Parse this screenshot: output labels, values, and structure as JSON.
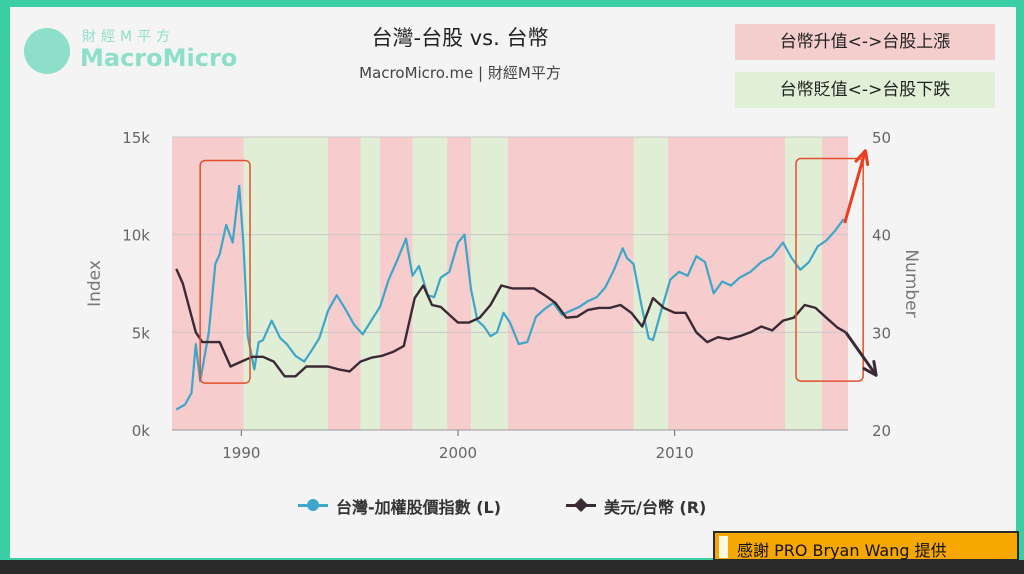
{
  "logo": {
    "cn": "財經M平方",
    "en": "MacroMicro"
  },
  "title": "台灣-台股 vs. 台幣",
  "subtitle": "MacroMicro.me | 財經M平方",
  "legend_boxes": {
    "up": "台幣升值<->台股上漲",
    "down": "台幣貶值<->台股下跌"
  },
  "colors": {
    "taiex": "#3ea6c8",
    "usdtwd": "#3a2a35",
    "shade_red": "#f6cccd",
    "shade_green": "#e1eed6",
    "arrow_red": "#ee3d1e",
    "arrow_dark": "#3a2a35",
    "highlight_box": "#e2502a"
  },
  "credit": {
    "text": "感謝 PRO Bryan Wang 提供"
  },
  "chart_data": {
    "type": "line",
    "xlim": [
      1986.8,
      2018.0
    ],
    "x_ticks": [
      "1990",
      "2000",
      "2010"
    ],
    "left_axis": {
      "label": "Index",
      "ylim": [
        0,
        15000
      ],
      "ticks": [
        "0k",
        "5k",
        "10k",
        "15k"
      ]
    },
    "right_axis": {
      "label": "Number",
      "ylim": [
        20,
        50
      ],
      "ticks": [
        "20",
        "30",
        "40",
        "50"
      ]
    },
    "regions": [
      {
        "from": 1986.8,
        "to": 1990.1,
        "kind": "up"
      },
      {
        "from": 1990.1,
        "to": 1994.0,
        "kind": "down"
      },
      {
        "from": 1994.0,
        "to": 1995.5,
        "kind": "up"
      },
      {
        "from": 1995.5,
        "to": 1996.4,
        "kind": "down"
      },
      {
        "from": 1996.4,
        "to": 1997.9,
        "kind": "up"
      },
      {
        "from": 1997.9,
        "to": 1999.5,
        "kind": "down"
      },
      {
        "from": 1999.5,
        "to": 2000.6,
        "kind": "up"
      },
      {
        "from": 2000.6,
        "to": 2002.3,
        "kind": "down"
      },
      {
        "from": 2002.3,
        "to": 2008.1,
        "kind": "up"
      },
      {
        "from": 2008.1,
        "to": 2009.7,
        "kind": "down"
      },
      {
        "from": 2009.7,
        "to": 2015.1,
        "kind": "up"
      },
      {
        "from": 2015.1,
        "to": 2016.8,
        "kind": "down"
      },
      {
        "from": 2016.8,
        "to": 2018.0,
        "kind": "up"
      }
    ],
    "series": [
      {
        "name": "台灣-加權股價指數 (L)",
        "axis": "left",
        "x": [
          1987.0,
          1987.4,
          1987.7,
          1987.9,
          1988.1,
          1988.5,
          1988.8,
          1989.0,
          1989.3,
          1989.6,
          1989.9,
          1990.1,
          1990.3,
          1990.6,
          1990.8,
          1991.0,
          1991.4,
          1991.8,
          1992.1,
          1992.5,
          1992.9,
          1993.2,
          1993.6,
          1994.0,
          1994.4,
          1994.8,
          1995.2,
          1995.6,
          1996.0,
          1996.4,
          1996.8,
          1997.2,
          1997.6,
          1997.9,
          1998.2,
          1998.6,
          1998.9,
          1999.2,
          1999.6,
          2000.0,
          2000.3,
          2000.6,
          2000.9,
          2001.2,
          2001.5,
          2001.8,
          2002.1,
          2002.4,
          2002.8,
          2003.2,
          2003.6,
          2004.0,
          2004.4,
          2004.8,
          2005.2,
          2005.6,
          2006.0,
          2006.4,
          2006.8,
          2007.2,
          2007.6,
          2007.8,
          2008.1,
          2008.5,
          2008.8,
          2009.0,
          2009.4,
          2009.8,
          2010.2,
          2010.6,
          2011.0,
          2011.4,
          2011.8,
          2012.2,
          2012.6,
          2013.0,
          2013.5,
          2014.0,
          2014.5,
          2015.0,
          2015.4,
          2015.8,
          2016.2,
          2016.6,
          2017.0,
          2017.4,
          2017.8
        ],
        "values": [
          1050,
          1300,
          1900,
          4400,
          2500,
          5000,
          8500,
          9000,
          10500,
          9600,
          12500,
          9500,
          4800,
          3100,
          4500,
          4600,
          5600,
          4700,
          4400,
          3800,
          3500,
          4000,
          4700,
          6100,
          6900,
          6200,
          5400,
          4900,
          5600,
          6300,
          7700,
          8700,
          9800,
          7900,
          8400,
          6900,
          6800,
          7800,
          8100,
          9600,
          10000,
          7200,
          5600,
          5300,
          4800,
          5000,
          6000,
          5500,
          4400,
          4500,
          5800,
          6200,
          6500,
          5900,
          6100,
          6300,
          6600,
          6800,
          7300,
          8200,
          9300,
          8800,
          8500,
          6200,
          4700,
          4600,
          6200,
          7700,
          8100,
          7900,
          8900,
          8600,
          7000,
          7600,
          7400,
          7800,
          8100,
          8600,
          8900,
          9600,
          8800,
          8200,
          8600,
          9400,
          9700,
          10200,
          10800
        ]
      },
      {
        "name": "美元/台幣 (R)",
        "axis": "right",
        "x": [
          1987.0,
          1987.3,
          1987.6,
          1987.9,
          1988.2,
          1988.6,
          1989.0,
          1989.5,
          1990.0,
          1990.5,
          1991.0,
          1991.5,
          1992.0,
          1992.5,
          1993.0,
          1993.5,
          1994.0,
          1994.5,
          1995.0,
          1995.5,
          1996.0,
          1996.5,
          1997.0,
          1997.5,
          1998.0,
          1998.4,
          1998.8,
          1999.2,
          1999.6,
          2000.0,
          2000.5,
          2001.0,
          2001.5,
          2002.0,
          2002.5,
          2003.0,
          2003.5,
          2004.0,
          2004.5,
          2005.0,
          2005.5,
          2006.0,
          2006.5,
          2007.0,
          2007.5,
          2008.0,
          2008.5,
          2009.0,
          2009.5,
          2010.0,
          2010.5,
          2011.0,
          2011.5,
          2012.0,
          2012.5,
          2013.0,
          2013.5,
          2014.0,
          2014.5,
          2015.0,
          2015.5,
          2016.0,
          2016.5,
          2017.0,
          2017.5,
          2017.9
        ],
        "values": [
          36.5,
          35.0,
          32.5,
          30.0,
          29.0,
          29.0,
          29.0,
          26.5,
          27.0,
          27.5,
          27.5,
          27.0,
          25.5,
          25.5,
          26.5,
          26.5,
          26.5,
          26.2,
          26.0,
          27.0,
          27.4,
          27.6,
          28.0,
          28.6,
          33.5,
          34.8,
          32.8,
          32.6,
          31.8,
          31.0,
          31.0,
          31.5,
          32.8,
          34.8,
          34.5,
          34.5,
          34.5,
          33.8,
          33.0,
          31.5,
          31.6,
          32.3,
          32.5,
          32.5,
          32.8,
          32.0,
          30.6,
          33.5,
          32.5,
          32.0,
          32.0,
          30.0,
          29.0,
          29.5,
          29.3,
          29.6,
          30.0,
          30.6,
          30.2,
          31.2,
          31.5,
          32.8,
          32.5,
          31.5,
          30.5,
          30.0
        ]
      }
    ],
    "arrows": [
      {
        "from": [
          2017.85,
          10600
        ],
        "to": [
          2018.8,
          14300
        ],
        "axis": "left",
        "color": "arrow_red"
      },
      {
        "from": [
          2017.9,
          30.0
        ],
        "to": [
          2019.3,
          25.6
        ],
        "axis": "right",
        "color": "arrow_dark"
      }
    ],
    "highlight_boxes": [
      {
        "x": [
          1988.1,
          1990.4
        ],
        "y_left": [
          2400,
          13800
        ]
      },
      {
        "x": [
          2015.6,
          2018.7
        ],
        "y_left": [
          2500,
          13900
        ]
      }
    ]
  }
}
